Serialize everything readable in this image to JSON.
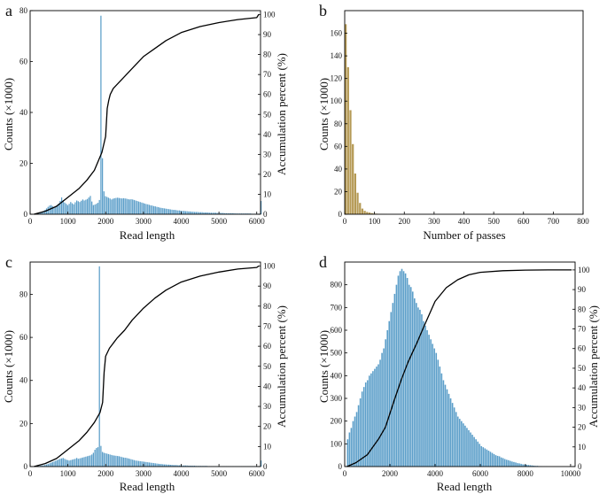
{
  "panels": [
    {
      "label": "a",
      "chart_data": {
        "type": "bar",
        "xlabel": "Read length",
        "ylabel": "Counts (×1000)",
        "y2label": "Accumulation percent (%)",
        "xlim": [
          0,
          6100
        ],
        "ylim": [
          0,
          80
        ],
        "y2lim": [
          0,
          102
        ],
        "xticks": [
          0,
          1000,
          2000,
          3000,
          4000,
          5000,
          6000
        ],
        "yticks": [
          0,
          20,
          40,
          60,
          80
        ],
        "y2ticks": [
          0,
          10,
          20,
          30,
          40,
          50,
          60,
          70,
          80,
          90,
          100
        ],
        "bar_color": "#5b9ec9",
        "bars": {
          "x0": 100,
          "width": 40,
          "values": [
            0.1,
            0.2,
            0.3,
            0.5,
            0.7,
            1,
            1.3,
            1.7,
            2.3,
            2.9,
            3.4,
            3.6,
            3.2,
            2.6,
            3.1,
            3.6,
            4.2,
            5.2,
            6.6,
            5.5,
            4.6,
            4.1,
            3.6,
            4.1,
            4.8,
            4.3,
            3.9,
            4.7,
            5.4,
            5.1,
            4.8,
            5.3,
            5.8,
            5.4,
            5.7,
            6,
            6.6,
            7.2,
            5,
            3.6,
            3.8,
            4.1,
            4.5,
            5.6,
            78,
            22,
            9,
            7.1,
            6.8,
            6.5,
            6.2,
            5.8,
            6.1,
            6.3,
            6.4,
            6.5,
            6.4,
            6.3,
            6.2,
            6.3,
            6.2,
            6.1,
            5.9,
            5.8,
            5.9,
            5.8,
            5.6,
            5.4,
            5.2,
            5,
            4.8,
            4.6,
            4.4,
            4.2,
            4,
            3.9,
            3.7,
            3.5,
            3.4,
            3.2,
            3.1,
            2.9,
            2.8,
            2.6,
            2.5,
            2.4,
            2.3,
            2.2,
            2.1,
            2,
            1.9,
            1.8,
            1.7,
            1.7,
            1.6,
            1.5,
            1.5,
            1.4,
            1.3,
            1.3,
            1.2,
            1.2,
            1.1,
            1.1,
            1,
            1,
            0.9,
            0.9,
            0.9,
            0.8,
            0.8,
            0.8,
            0.7,
            0.7,
            0.7,
            0.7,
            0.6,
            0.6,
            0.6,
            0.6,
            0.6,
            0.5,
            0.5,
            0.5,
            0.5,
            0.5,
            0.4,
            0.4,
            0.4,
            0.4,
            0.4,
            0.4,
            0.4,
            0.3,
            0.3,
            0.3,
            0.3,
            0.3,
            0.3,
            0.3,
            0.3,
            0.3,
            0.3,
            0.3,
            0.2,
            0.2,
            0.2,
            0.2,
            0.2,
            0.2,
            5.2
          ]
        },
        "cumulative": {
          "x": [
            100,
            400,
            700,
            900,
            1100,
            1300,
            1500,
            1700,
            1900,
            2000,
            2040,
            2080,
            2120,
            2200,
            2400,
            2600,
            2800,
            3000,
            3300,
            3600,
            4000,
            4500,
            5000,
            5500,
            6000,
            6050
          ],
          "y": [
            0,
            1.5,
            4,
            7,
            10,
            13,
            17,
            22,
            31,
            39,
            53,
            57,
            60,
            63,
            67,
            71,
            75,
            79,
            83,
            87,
            91,
            94,
            96,
            97.5,
            98.5,
            100
          ]
        }
      }
    },
    {
      "label": "b",
      "chart_data": {
        "type": "bar",
        "xlabel": "Number of passes",
        "ylabel": "Counts (×1000)",
        "xlim": [
          0,
          800
        ],
        "ylim": [
          0,
          180
        ],
        "xticks": [
          0,
          100,
          200,
          300,
          400,
          500,
          600,
          700,
          800
        ],
        "yticks": [
          0,
          20,
          40,
          60,
          80,
          100,
          120,
          140,
          160
        ],
        "bar_color": "#b59a55",
        "bars": {
          "x0": 0,
          "width": 8,
          "values": [
            168,
            130,
            92,
            62,
            36,
            19,
            10,
            5,
            3,
            2,
            1.5,
            1,
            0.7,
            0.5,
            0.4,
            0.3,
            0.2,
            0.1
          ]
        }
      }
    },
    {
      "label": "c",
      "chart_data": {
        "type": "bar",
        "xlabel": "Read length",
        "ylabel": "Counts (×1000)",
        "y2label": "Accumulation percent (%)",
        "xlim": [
          0,
          6100
        ],
        "ylim": [
          0,
          95
        ],
        "y2lim": [
          0,
          102
        ],
        "xticks": [
          0,
          1000,
          2000,
          3000,
          4000,
          5000,
          6000
        ],
        "yticks": [
          0,
          20,
          40,
          60,
          80
        ],
        "y2ticks": [
          0,
          10,
          20,
          30,
          40,
          50,
          60,
          70,
          80,
          90,
          100
        ],
        "bar_color": "#5b9ec9",
        "bars": {
          "x0": 100,
          "width": 40,
          "values": [
            0.1,
            0.1,
            0.2,
            0.3,
            0.4,
            0.5,
            0.6,
            0.8,
            1,
            1.2,
            1.5,
            1.8,
            2.1,
            2.4,
            2.7,
            3,
            3.3,
            3.6,
            3.8,
            4,
            3.6,
            3.2,
            3,
            2.8,
            3,
            3.2,
            3.4,
            3.6,
            4,
            3.6,
            3.8,
            4,
            4.2,
            4.4,
            4.6,
            4.8,
            5,
            5.2,
            5.6,
            6.4,
            7.8,
            8.6,
            9,
            93,
            9.6,
            6.8,
            6.4,
            6.2,
            6,
            5.8,
            5.6,
            5.4,
            5.2,
            5.1,
            5,
            4.9,
            4.8,
            4.6,
            4.4,
            4.2,
            4.1,
            4,
            3.8,
            3.6,
            3.4,
            3.2,
            3,
            2.8,
            2.7,
            2.6,
            2.5,
            2.4,
            2.3,
            2.2,
            2.1,
            2,
            1.9,
            1.8,
            1.7,
            1.6,
            1.5,
            1.4,
            1.3,
            1.2,
            1.2,
            1.1,
            1,
            1,
            0.9,
            0.9,
            0.8,
            0.8,
            0.7,
            0.7,
            0.7,
            0.6,
            0.6,
            0.6,
            0.5,
            0.5,
            0.5,
            0.5,
            0.4,
            0.4,
            0.4,
            0.4,
            0.4,
            0.3,
            0.3,
            0.3,
            0.3,
            0.3,
            0.3,
            0.3,
            0.3,
            0.2,
            0.2,
            0.2,
            0.2,
            0.2,
            0.2,
            0.2,
            0.2,
            0.2,
            0.2,
            0.2,
            0.2,
            0.2,
            0.2,
            0.2,
            0.2,
            0.2,
            0.2,
            0.2,
            0.2,
            0.2,
            0.2,
            0.2,
            0.2,
            0.2,
            0.2,
            0.2,
            0.2,
            0.2,
            0.2,
            0.2,
            0.2,
            0.2,
            0.2,
            0.2,
            2.8
          ]
        },
        "cumulative": {
          "x": [
            100,
            400,
            700,
            900,
            1100,
            1300,
            1500,
            1700,
            1850,
            1920,
            1960,
            2000,
            2100,
            2300,
            2500,
            2700,
            3000,
            3300,
            3600,
            4000,
            4500,
            5000,
            5500,
            6000,
            6050
          ],
          "y": [
            0,
            1.5,
            4,
            7,
            10,
            13,
            17,
            22,
            27,
            32,
            47,
            55,
            59,
            64,
            68,
            73,
            79,
            84,
            88,
            92,
            95,
            97,
            98.5,
            99.3,
            100
          ]
        }
      }
    },
    {
      "label": "d",
      "chart_data": {
        "type": "bar",
        "xlabel": "Read length",
        "ylabel": "Counts (×1000)",
        "y2label": "Accumulation percent (%)",
        "xlim": [
          0,
          10200
        ],
        "ylim": [
          0,
          900
        ],
        "y2lim": [
          0,
          104
        ],
        "xticks": [
          0,
          2000,
          4000,
          6000,
          8000,
          10000
        ],
        "yticks": [
          0,
          100,
          200,
          300,
          400,
          500,
          600,
          700,
          800
        ],
        "y2ticks": [
          0,
          10,
          20,
          30,
          40,
          50,
          60,
          70,
          80,
          90,
          100
        ],
        "bar_color": "#5b9ec9",
        "bars": {
          "x0": 100,
          "width": 80,
          "values": [
            120,
            150,
            170,
            200,
            220,
            240,
            270,
            300,
            330,
            350,
            370,
            380,
            400,
            410,
            420,
            430,
            440,
            450,
            470,
            500,
            520,
            560,
            600,
            640,
            680,
            720,
            760,
            800,
            840,
            860,
            870,
            860,
            850,
            830,
            800,
            790,
            770,
            740,
            720,
            700,
            690,
            670,
            640,
            620,
            600,
            580,
            560,
            540,
            520,
            500,
            470,
            440,
            410,
            380,
            360,
            340,
            320,
            300,
            280,
            260,
            240,
            220,
            210,
            200,
            190,
            180,
            170,
            160,
            150,
            140,
            130,
            120,
            110,
            100,
            90,
            85,
            80,
            75,
            70,
            65,
            60,
            55,
            50,
            47,
            45,
            40,
            37,
            33,
            30,
            28,
            25,
            22,
            20,
            18,
            15,
            14,
            12,
            10,
            9,
            8,
            7,
            6,
            5,
            4,
            3,
            3,
            2,
            2,
            1,
            1,
            1
          ]
        },
        "cumulative": {
          "x": [
            100,
            500,
            1000,
            1500,
            1800,
            2000,
            2200,
            2500,
            2800,
            3000,
            3200,
            3500,
            4000,
            4500,
            5000,
            5500,
            6000,
            7000,
            8000,
            9000,
            10000,
            10050
          ],
          "y": [
            0,
            2,
            6,
            14,
            20,
            27,
            34,
            44,
            53,
            58,
            63,
            71,
            84,
            91,
            95,
            97.5,
            98.8,
            99.6,
            99.9,
            100,
            100,
            100
          ]
        }
      }
    }
  ]
}
